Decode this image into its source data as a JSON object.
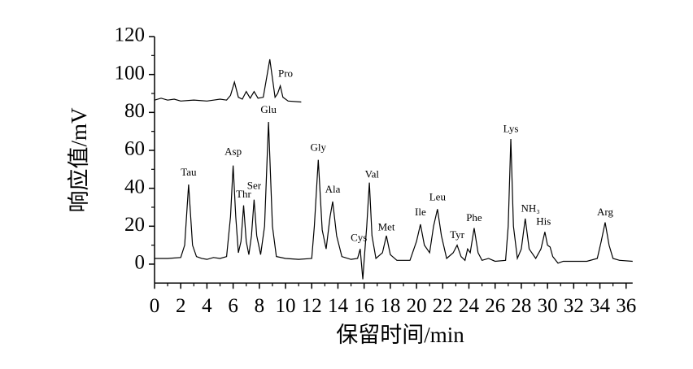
{
  "chart_data": {
    "type": "line",
    "xlabel": "保留时间/min",
    "ylabel": "响应值/mV",
    "xlim": [
      0,
      36.5
    ],
    "ylim": [
      -10,
      120
    ],
    "xticks": [
      0,
      2,
      4,
      6,
      8,
      10,
      12,
      14,
      16,
      18,
      20,
      22,
      24,
      26,
      28,
      30,
      32,
      34,
      36
    ],
    "yticks": [
      0,
      20,
      40,
      60,
      80,
      100,
      120
    ],
    "series": [
      {
        "color": "#000000",
        "x": [
          0,
          1,
          2,
          2.3,
          2.6,
          2.9,
          3.2,
          3.6,
          4,
          4.5,
          5,
          5.5,
          5.8,
          6.0,
          6.2,
          6.4,
          6.6,
          6.8,
          7.0,
          7.2,
          7.4,
          7.6,
          7.8,
          8.1,
          8.4,
          8.7,
          9.0,
          9.3,
          10,
          11,
          12,
          12.2,
          12.5,
          12.8,
          13.1,
          13.4,
          13.6,
          13.9,
          14.3,
          15,
          15.5,
          15.7,
          15.9,
          16.0,
          16.2,
          16.4,
          16.6,
          16.9,
          17.4,
          17.7,
          18.0,
          18.5,
          19.5,
          20.0,
          20.3,
          20.6,
          21.0,
          21.3,
          21.6,
          21.9,
          22.3,
          22.8,
          23.1,
          23.4,
          23.7,
          23.9,
          24.1,
          24.4,
          24.7,
          25,
          25.5,
          26,
          26.8,
          27.0,
          27.2,
          27.4,
          27.7,
          28.0,
          28.3,
          28.6,
          29.1,
          29.5,
          29.8,
          30.0,
          30.2,
          30.4,
          30.8,
          31.2,
          32,
          33,
          33.8,
          34.1,
          34.4,
          34.7,
          35,
          35.5,
          36.5
        ],
        "values": [
          3,
          3,
          3.5,
          10,
          42,
          10,
          4,
          3,
          2.5,
          3.5,
          3,
          4,
          25,
          52,
          25,
          6,
          12,
          31,
          12,
          5,
          15,
          34,
          15,
          5,
          20,
          75,
          20,
          4,
          3,
          2.5,
          3,
          20,
          55,
          18,
          8,
          25,
          33,
          15,
          4,
          2.5,
          3,
          8,
          -8,
          2,
          20,
          43,
          15,
          3,
          6,
          15,
          5,
          2,
          2,
          12,
          21,
          10,
          6,
          20,
          29,
          15,
          3,
          6,
          10,
          4,
          2,
          8,
          6,
          19,
          6,
          2,
          3,
          1.5,
          2,
          20,
          66,
          20,
          3,
          8,
          24,
          8,
          3,
          8,
          17,
          10,
          9,
          4,
          0.5,
          1.5,
          1.5,
          1.5,
          3,
          12,
          22,
          10,
          3,
          2,
          1.5
        ]
      },
      {
        "color": "#000000",
        "x": [
          0,
          0.5,
          1,
          1.5,
          2,
          3,
          4,
          4.5,
          5,
          5.5,
          5.8,
          6.1,
          6.4,
          6.7,
          7.0,
          7.3,
          7.6,
          7.9,
          8.3,
          8.6,
          8.8,
          9.0,
          9.2,
          9.4,
          9.6,
          9.8,
          10.2,
          11.2
        ],
        "values": [
          86.5,
          87.5,
          86.5,
          87,
          86,
          86.5,
          86,
          86.5,
          87,
          86.5,
          89,
          96,
          88,
          87,
          91,
          87.5,
          91,
          87.5,
          88,
          100,
          108,
          98,
          88,
          90,
          94,
          88,
          86,
          85.5
        ]
      }
    ],
    "annotations": [
      {
        "text": "Tau",
        "x": 2.6,
        "y": 48
      },
      {
        "text": "Asp",
        "x": 6.0,
        "y": 59
      },
      {
        "text": "Thr",
        "x": 6.8,
        "y": 36.5
      },
      {
        "text": "Ser",
        "x": 7.6,
        "y": 41
      },
      {
        "text": "Glu",
        "x": 8.7,
        "y": 81
      },
      {
        "text": "Gly",
        "x": 12.5,
        "y": 61
      },
      {
        "text": "Ala",
        "x": 13.6,
        "y": 39
      },
      {
        "text": "Cys",
        "x": 15.6,
        "y": 13.5
      },
      {
        "text": "Val",
        "x": 16.6,
        "y": 47
      },
      {
        "text": "Met",
        "x": 17.7,
        "y": 19
      },
      {
        "text": "Ile",
        "x": 20.3,
        "y": 27
      },
      {
        "text": "Leu",
        "x": 21.6,
        "y": 35
      },
      {
        "text": "Tyr",
        "x": 23.1,
        "y": 15
      },
      {
        "text": "Phe",
        "x": 24.4,
        "y": 24
      },
      {
        "text": "Lys",
        "x": 27.2,
        "y": 71
      },
      {
        "text": "NH₃",
        "x": 28.7,
        "y": 29
      },
      {
        "text": "His",
        "x": 29.7,
        "y": 22
      },
      {
        "text": "Arg",
        "x": 34.4,
        "y": 27
      },
      {
        "text": "Pro",
        "x": 10.0,
        "y": 100
      }
    ]
  }
}
